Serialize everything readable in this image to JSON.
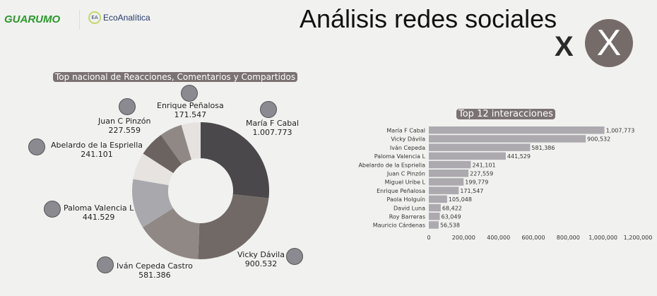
{
  "header": {
    "logo_guarumo": "GUARUMO",
    "logo_eco": "EcoAnalítica",
    "logo_eco_mark": "EA",
    "title": "Análisis redes sociales",
    "x_text": "X",
    "x_logo": "X"
  },
  "chart_data": [
    {
      "type": "pie",
      "title": "Top nacional de Reacciones, Comentarios y Compartidos",
      "slices": [
        {
          "name": "María F Cabal",
          "value": 1007773,
          "label": "1.007.773",
          "color": "#4a484b"
        },
        {
          "name": "Vicky Dávila",
          "value": 900532,
          "label": "900.532",
          "color": "#716966"
        },
        {
          "name": "Iván Cepeda Castro",
          "value": 581386,
          "label": "581.386",
          "color": "#8f8884"
        },
        {
          "name": "Paloma Valencia L",
          "value": 441529,
          "label": "441.529",
          "color": "#a9a8ad"
        },
        {
          "name": "Abelardo de la Espriella",
          "value": 241101,
          "label": "241.101",
          "color": "#e6e3e1"
        },
        {
          "name": "Juan C Pinzón",
          "value": 227559,
          "label": "227.559",
          "color": "#6b6360"
        },
        {
          "name": "Miguel Uribe L",
          "value": 199779,
          "label": "",
          "color": "#8f8885"
        },
        {
          "name": "Enrique Peñalosa",
          "value": 171547,
          "label": "171.547",
          "color": "#e6e2e0"
        }
      ]
    },
    {
      "type": "bar",
      "orientation": "horizontal",
      "title": "Top 12 interacciones",
      "categories": [
        "María F Cabal",
        "Vicky Dávila",
        "Iván Cepeda",
        "Paloma Valencia L",
        "Abelardo de la Espriella",
        "Juan C Pinzón",
        "Miguel Uribe L",
        "Enrique Peñalosa",
        "Paola Holguín",
        "David Luna",
        "Roy Barreras",
        "Mauricio Cárdenas"
      ],
      "values": [
        1007773,
        900532,
        581386,
        441529,
        241101,
        227559,
        199779,
        171547,
        105048,
        68422,
        63049,
        56538
      ],
      "value_labels": [
        "1,007,773",
        "900,532",
        "581,386",
        "441,529",
        "241,101",
        "227,559",
        "199,779",
        "171,547",
        "105,048",
        "68,422",
        "63,049",
        "56,538"
      ],
      "xlim": [
        0,
        1200000
      ],
      "xticks": [
        "0",
        "200,000",
        "400,000",
        "600,000",
        "800,000",
        "1,000,000",
        "1,200,000"
      ],
      "bar_color": "#acaaae"
    }
  ]
}
